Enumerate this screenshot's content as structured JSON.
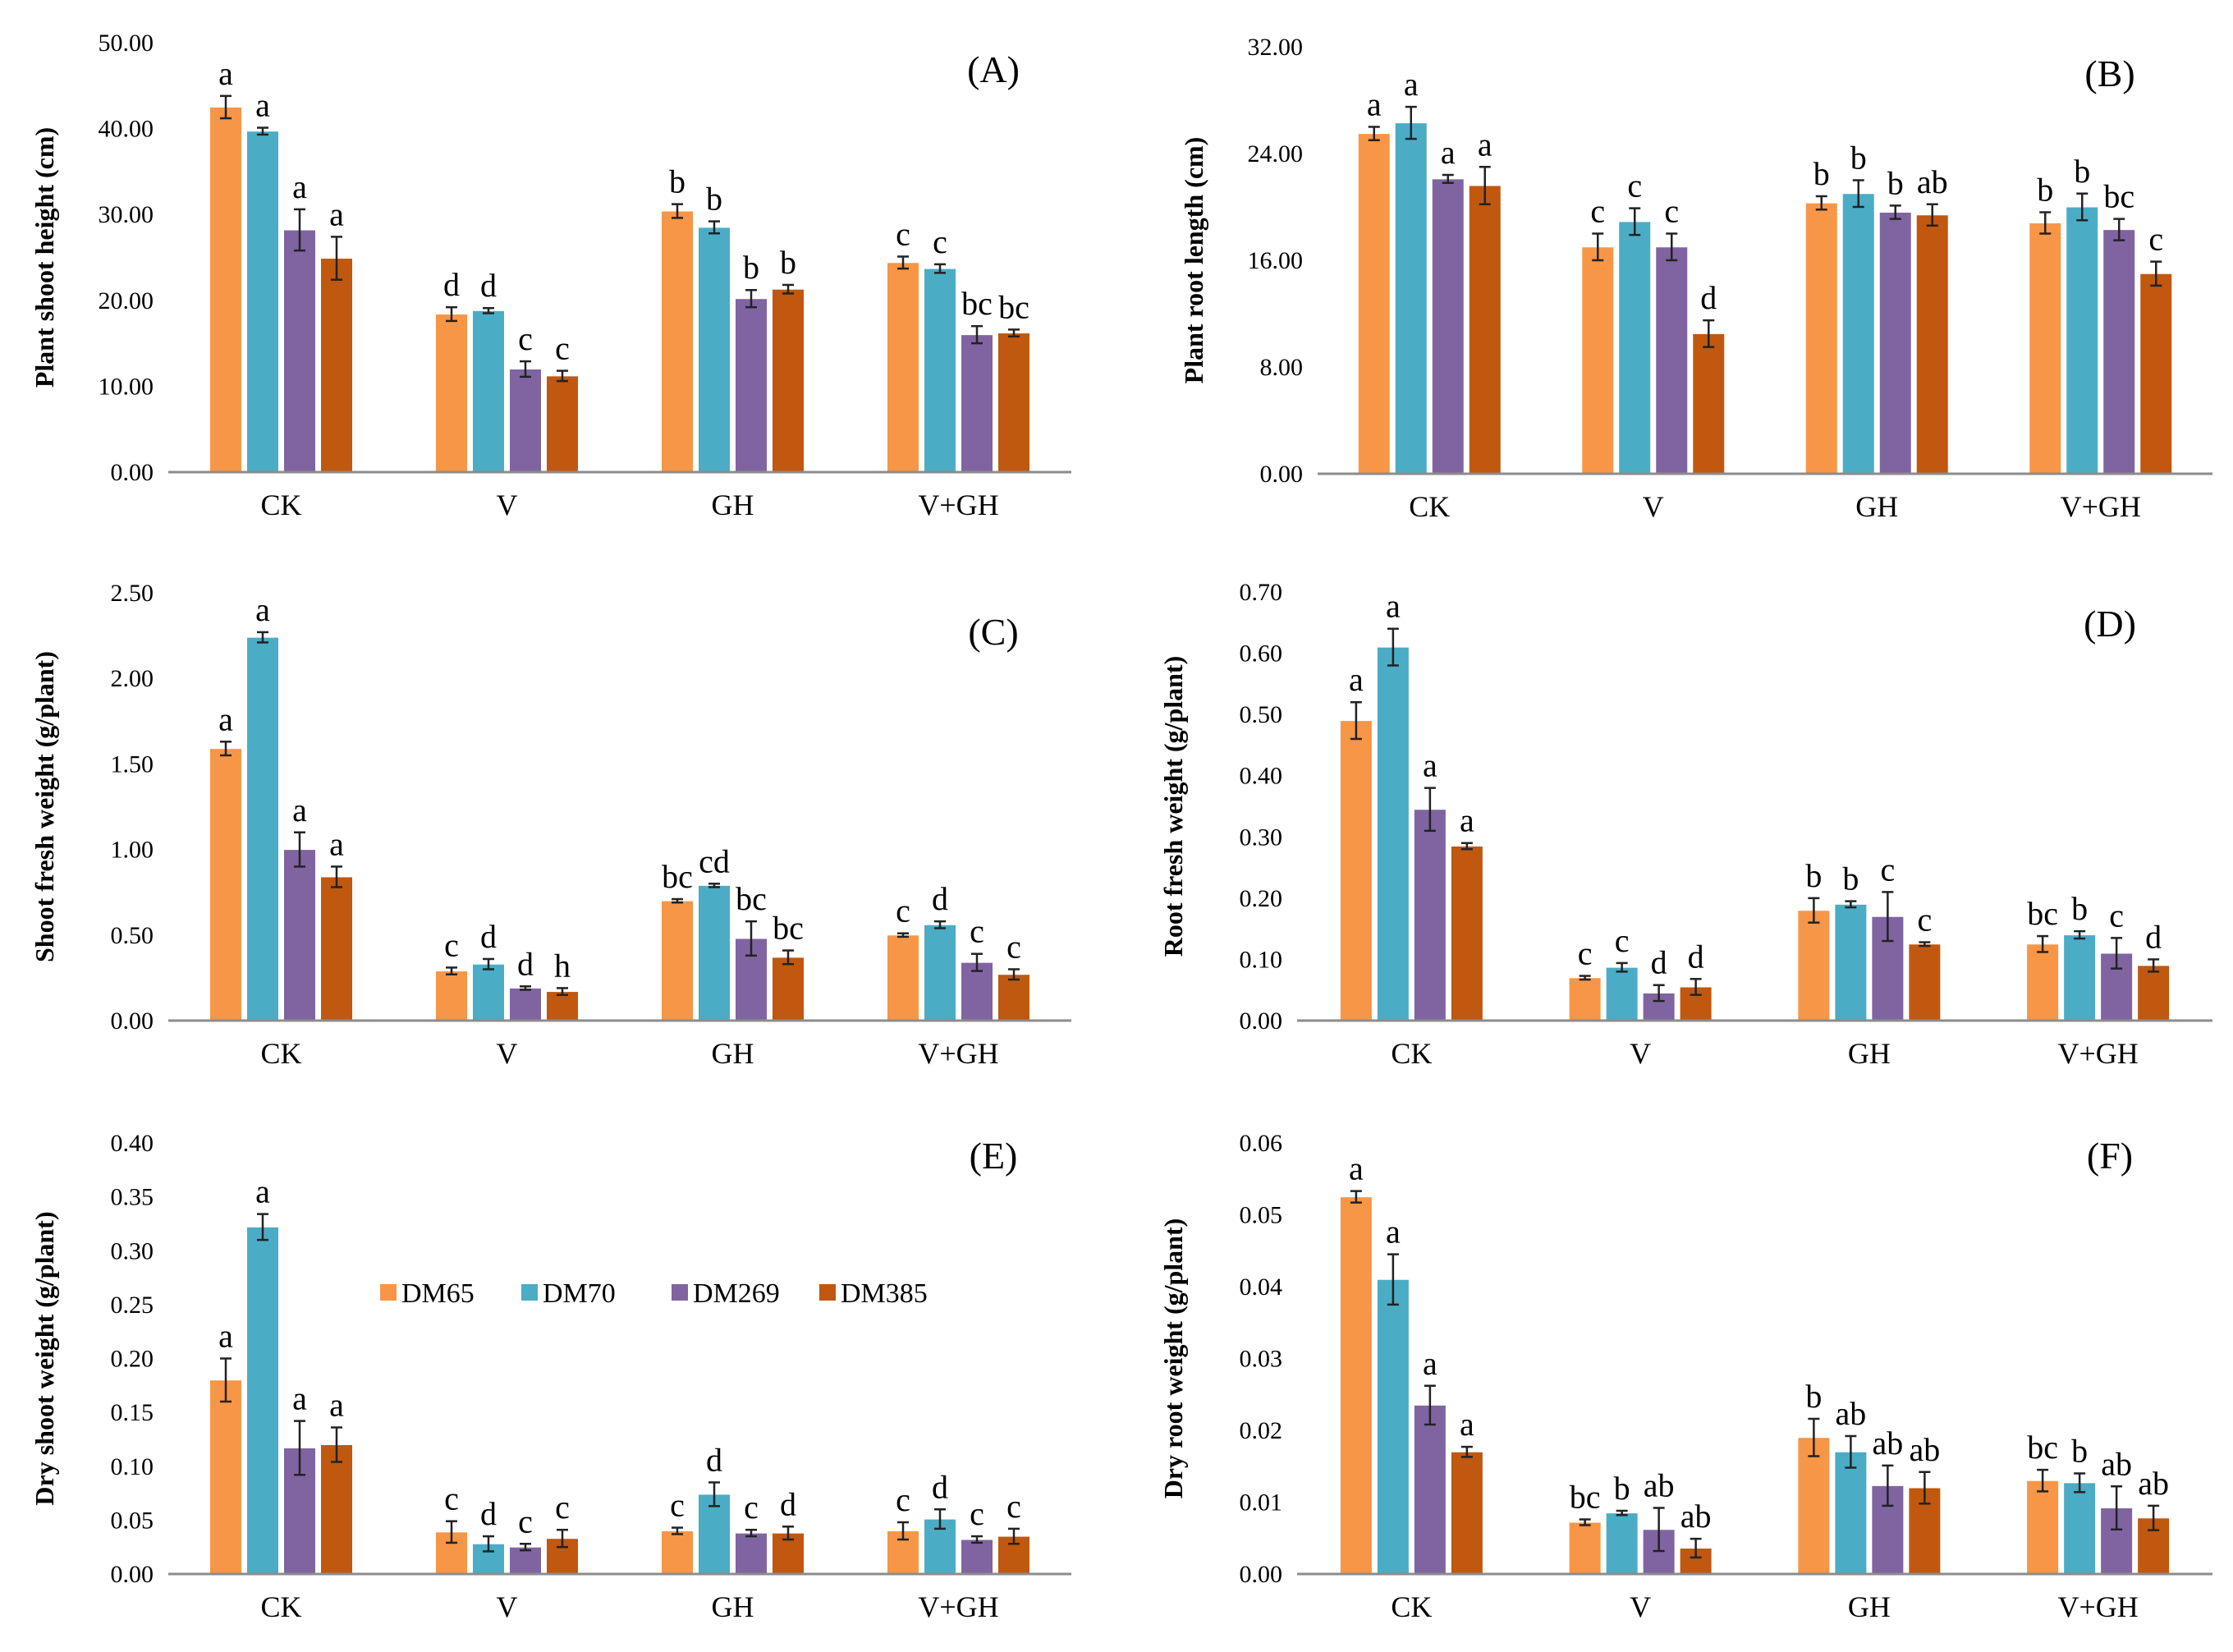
{
  "legend": [
    "DM65",
    "DM70",
    "DM269",
    "DM385"
  ],
  "colors": {
    "DM65": "#F79646",
    "DM70": "#4BACC6",
    "DM269": "#8064A2",
    "DM385": "#C0580F"
  },
  "chart_data": [
    {
      "type": "bar",
      "panel": "(A)",
      "title": "",
      "xlabel": "",
      "ylabel": "Plant shoot height (cm)",
      "ylim": [
        0,
        50
      ],
      "yticks": [
        "0.00",
        "10.00",
        "20.00",
        "30.00",
        "40.00",
        "50.00"
      ],
      "categories": [
        "CK",
        "V",
        "GH",
        "V+GH"
      ],
      "series": [
        {
          "name": "DM65",
          "values": [
            42.5,
            18.4,
            30.4,
            24.4
          ],
          "errors": [
            1.3,
            0.8,
            0.8,
            0.7
          ],
          "letters": [
            "a",
            "d",
            "b",
            "c"
          ]
        },
        {
          "name": "DM70",
          "values": [
            39.7,
            18.8,
            28.5,
            23.7
          ],
          "errors": [
            0.4,
            0.3,
            0.7,
            0.5
          ],
          "letters": [
            "a",
            "d",
            "b",
            "c"
          ]
        },
        {
          "name": "DM269",
          "values": [
            28.2,
            12.0,
            20.2,
            16.0
          ],
          "errors": [
            2.4,
            0.9,
            1.0,
            1.0
          ],
          "letters": [
            "a",
            "c",
            "b",
            "bc"
          ]
        },
        {
          "name": "DM385",
          "values": [
            24.9,
            11.2,
            21.3,
            16.2
          ],
          "errors": [
            2.5,
            0.6,
            0.5,
            0.4
          ],
          "letters": [
            "a",
            "c",
            "b",
            "bc"
          ]
        }
      ]
    },
    {
      "type": "bar",
      "panel": "(B)",
      "title": "",
      "xlabel": "",
      "ylabel": "Plant root length (cm)",
      "ylim": [
        0,
        32
      ],
      "yticks": [
        "0.00",
        "8.00",
        "16.00",
        "24.00",
        "32.00"
      ],
      "categories": [
        "CK",
        "V",
        "GH",
        "V+GH"
      ],
      "series": [
        {
          "name": "DM65",
          "values": [
            25.5,
            17.0,
            20.3,
            18.8
          ],
          "errors": [
            0.5,
            1.0,
            0.5,
            0.8
          ],
          "letters": [
            "a",
            "c",
            "b",
            "b"
          ]
        },
        {
          "name": "DM70",
          "values": [
            26.3,
            18.9,
            21.0,
            20.0
          ],
          "errors": [
            1.2,
            1.0,
            1.0,
            1.0
          ],
          "letters": [
            "a",
            "c",
            "b",
            "b"
          ]
        },
        {
          "name": "DM269",
          "values": [
            22.1,
            17.0,
            19.6,
            18.3
          ],
          "errors": [
            0.3,
            1.0,
            0.5,
            0.8
          ],
          "letters": [
            "a",
            "c",
            "b",
            "bc"
          ]
        },
        {
          "name": "DM385",
          "values": [
            21.6,
            10.5,
            19.4,
            15.0
          ],
          "errors": [
            1.4,
            1.0,
            0.8,
            0.9
          ],
          "letters": [
            "a",
            "d",
            "ab",
            "c"
          ]
        }
      ]
    },
    {
      "type": "bar",
      "panel": "(C)",
      "title": "",
      "xlabel": "",
      "ylabel": "Shoot fresh weight (g/plant)",
      "ylim": [
        0,
        2.5
      ],
      "yticks": [
        "0.00",
        "0.50",
        "1.00",
        "1.50",
        "2.00",
        "2.50"
      ],
      "categories": [
        "CK",
        "V",
        "GH",
        "V+GH"
      ],
      "series": [
        {
          "name": "DM65",
          "values": [
            1.59,
            0.29,
            0.7,
            0.5
          ],
          "errors": [
            0.04,
            0.02,
            0.01,
            0.01
          ],
          "letters": [
            "a",
            "c",
            "bc",
            "c"
          ]
        },
        {
          "name": "DM70",
          "values": [
            2.24,
            0.33,
            0.79,
            0.56
          ],
          "errors": [
            0.03,
            0.03,
            0.01,
            0.02
          ],
          "letters": [
            "a",
            "d",
            "cd",
            "d"
          ]
        },
        {
          "name": "DM269",
          "values": [
            1.0,
            0.19,
            0.48,
            0.34
          ],
          "errors": [
            0.1,
            0.01,
            0.1,
            0.05
          ],
          "letters": [
            "a",
            "d",
            "bc",
            "c"
          ]
        },
        {
          "name": "DM385",
          "values": [
            0.84,
            0.17,
            0.37,
            0.27
          ],
          "errors": [
            0.06,
            0.02,
            0.04,
            0.03
          ],
          "letters": [
            "a",
            "h",
            "bc",
            "c"
          ]
        }
      ]
    },
    {
      "type": "bar",
      "panel": "(D)",
      "title": "",
      "xlabel": "",
      "ylabel": "Root fresh weight (g/plant)",
      "ylim": [
        0,
        0.7
      ],
      "yticks": [
        "0.00",
        "0.10",
        "0.20",
        "0.30",
        "0.40",
        "0.50",
        "0.60",
        "0.70"
      ],
      "categories": [
        "CK",
        "V",
        "GH",
        "V+GH"
      ],
      "series": [
        {
          "name": "DM65",
          "values": [
            0.49,
            0.07,
            0.18,
            0.125
          ],
          "errors": [
            0.03,
            0.003,
            0.02,
            0.013
          ],
          "letters": [
            "a",
            "c",
            "b",
            "bc"
          ]
        },
        {
          "name": "DM70",
          "values": [
            0.61,
            0.087,
            0.19,
            0.14
          ],
          "errors": [
            0.03,
            0.007,
            0.005,
            0.006
          ],
          "letters": [
            "a",
            "c",
            "b",
            "b"
          ]
        },
        {
          "name": "DM269",
          "values": [
            0.345,
            0.045,
            0.17,
            0.11
          ],
          "errors": [
            0.035,
            0.013,
            0.04,
            0.025
          ],
          "letters": [
            "a",
            "d",
            "c",
            "c"
          ]
        },
        {
          "name": "DM385",
          "values": [
            0.285,
            0.055,
            0.125,
            0.09
          ],
          "errors": [
            0.005,
            0.013,
            0.003,
            0.01
          ],
          "letters": [
            "a",
            "d",
            "c",
            "d"
          ]
        }
      ]
    },
    {
      "type": "bar",
      "panel": "(E)",
      "title": "",
      "xlabel": "",
      "ylabel": "Dry shoot weight (g/plant)",
      "ylim": [
        0,
        0.4
      ],
      "yticks": [
        "0.00",
        "0.05",
        "0.10",
        "0.15",
        "0.20",
        "0.25",
        "0.30",
        "0.35",
        "0.40"
      ],
      "categories": [
        "CK",
        "V",
        "GH",
        "V+GH"
      ],
      "series": [
        {
          "name": "DM65",
          "values": [
            0.18,
            0.039,
            0.04,
            0.04
          ],
          "errors": [
            0.02,
            0.01,
            0.003,
            0.008
          ],
          "letters": [
            "a",
            "c",
            "c",
            "c"
          ]
        },
        {
          "name": "DM70",
          "values": [
            0.322,
            0.028,
            0.074,
            0.051
          ],
          "errors": [
            0.012,
            0.007,
            0.011,
            0.009
          ],
          "letters": [
            "a",
            "d",
            "d",
            "d"
          ]
        },
        {
          "name": "DM269",
          "values": [
            0.117,
            0.025,
            0.038,
            0.032
          ],
          "errors": [
            0.025,
            0.003,
            0.003,
            0.003
          ],
          "letters": [
            "a",
            "c",
            "c",
            "c"
          ]
        },
        {
          "name": "DM385",
          "values": [
            0.12,
            0.033,
            0.038,
            0.035
          ],
          "errors": [
            0.016,
            0.008,
            0.006,
            0.007
          ],
          "letters": [
            "a",
            "c",
            "d",
            "c"
          ]
        }
      ]
    },
    {
      "type": "bar",
      "panel": "(F)",
      "title": "",
      "xlabel": "",
      "ylabel": "Dry root weight (g/plant)",
      "ylim": [
        0,
        0.06
      ],
      "yticks": [
        "0.00",
        "0.01",
        "0.02",
        "0.03",
        "0.04",
        "0.05",
        "0.06"
      ],
      "categories": [
        "CK",
        "V",
        "GH",
        "V+GH"
      ],
      "series": [
        {
          "name": "DM65",
          "values": [
            0.0525,
            0.0072,
            0.019,
            0.013
          ],
          "errors": [
            0.0008,
            0.0004,
            0.0026,
            0.0015
          ],
          "letters": [
            "a",
            "bc",
            "b",
            "bc"
          ]
        },
        {
          "name": "DM70",
          "values": [
            0.041,
            0.0085,
            0.017,
            0.0127
          ],
          "errors": [
            0.0035,
            0.0003,
            0.0022,
            0.0013
          ],
          "letters": [
            "a",
            "b",
            "ab",
            "b"
          ]
        },
        {
          "name": "DM269",
          "values": [
            0.0235,
            0.0062,
            0.0123,
            0.0092
          ],
          "errors": [
            0.0027,
            0.003,
            0.0028,
            0.003
          ],
          "letters": [
            "a",
            "ab",
            "ab",
            "ab"
          ]
        },
        {
          "name": "DM385",
          "values": [
            0.017,
            0.0036,
            0.012,
            0.0078
          ],
          "errors": [
            0.0007,
            0.0013,
            0.0022,
            0.0017
          ],
          "letters": [
            "a",
            "ab",
            "ab",
            "ab"
          ]
        }
      ]
    }
  ]
}
